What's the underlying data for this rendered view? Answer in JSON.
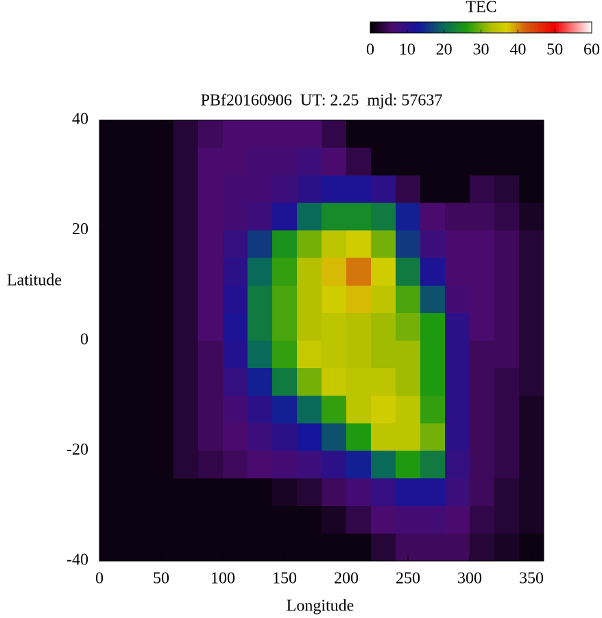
{
  "chart_data": {
    "type": "heatmap",
    "title": "PBf20160906  UT: 2.25  mjd: 57637",
    "xlabel": "Longitude",
    "ylabel": "Latitude",
    "colorbar_title": "TEC",
    "xlim": [
      0,
      360
    ],
    "ylim": [
      -40,
      40
    ],
    "xticks": [
      0,
      50,
      100,
      150,
      200,
      250,
      300,
      350
    ],
    "yticks": [
      -40,
      -20,
      0,
      20,
      40
    ],
    "colorbar_lim": [
      0,
      60
    ],
    "colorbar_ticks": [
      0,
      10,
      20,
      30,
      40,
      50,
      60
    ],
    "colormap": [
      {
        "value": 0,
        "color": "#000000"
      },
      {
        "value": 6,
        "color": "#4b0b6e"
      },
      {
        "value": 13,
        "color": "#14149c"
      },
      {
        "value": 20,
        "color": "#0a6a5a"
      },
      {
        "value": 26,
        "color": "#1e9a10"
      },
      {
        "value": 33,
        "color": "#b4c000"
      },
      {
        "value": 37,
        "color": "#d8d000"
      },
      {
        "value": 42,
        "color": "#d46010"
      },
      {
        "value": 50,
        "color": "#f00000"
      },
      {
        "value": 60,
        "color": "#ffffff"
      }
    ],
    "xbins": [
      0,
      20,
      40,
      60,
      80,
      100,
      120,
      140,
      160,
      180,
      200,
      220,
      240,
      260,
      280,
      300,
      320,
      340,
      360
    ],
    "ybins": [
      40,
      35,
      30,
      25,
      20,
      15,
      10,
      5,
      0,
      -5,
      -10,
      -15,
      -20,
      -25,
      -30,
      -35,
      -40
    ],
    "values": [
      [
        1,
        1,
        1,
        3,
        5,
        6,
        6,
        6,
        6,
        4,
        1,
        1,
        1,
        1,
        1,
        1,
        1,
        1
      ],
      [
        1,
        1,
        1,
        3,
        6,
        6,
        7,
        7,
        8,
        6,
        4,
        1,
        1,
        1,
        1,
        1,
        1,
        1
      ],
      [
        1,
        1,
        1,
        3,
        6,
        7,
        7,
        8,
        10,
        12,
        12,
        10,
        4,
        1,
        1,
        4,
        3,
        1
      ],
      [
        1,
        1,
        1,
        3,
        6,
        7,
        8,
        12,
        20,
        24,
        24,
        22,
        14,
        6,
        5,
        5,
        4,
        2
      ],
      [
        1,
        1,
        1,
        3,
        6,
        9,
        16,
        25,
        30,
        34,
        36,
        30,
        16,
        8,
        6,
        6,
        5,
        3
      ],
      [
        1,
        1,
        1,
        3,
        6,
        10,
        20,
        27,
        33,
        38,
        41,
        36,
        22,
        12,
        6,
        6,
        5,
        3
      ],
      [
        1,
        1,
        1,
        3,
        6,
        11,
        22,
        28,
        33,
        36,
        38,
        34,
        28,
        18,
        7,
        6,
        5,
        3
      ],
      [
        1,
        1,
        1,
        3,
        6,
        12,
        22,
        28,
        33,
        34,
        33,
        32,
        30,
        26,
        10,
        6,
        5,
        3
      ],
      [
        1,
        1,
        1,
        3,
        5,
        11,
        20,
        27,
        35,
        34,
        33,
        32,
        32,
        26,
        10,
        5,
        5,
        3
      ],
      [
        1,
        1,
        1,
        3,
        5,
        9,
        14,
        22,
        30,
        35,
        34,
        34,
        32,
        26,
        10,
        5,
        4,
        3
      ],
      [
        1,
        1,
        1,
        3,
        5,
        7,
        10,
        14,
        20,
        27,
        34,
        36,
        34,
        27,
        10,
        5,
        4,
        2
      ],
      [
        1,
        1,
        1,
        3,
        5,
        6,
        8,
        10,
        13,
        18,
        26,
        34,
        34,
        30,
        10,
        5,
        4,
        2
      ],
      [
        1,
        1,
        1,
        3,
        4,
        5,
        6,
        7,
        8,
        10,
        14,
        20,
        26,
        22,
        9,
        5,
        4,
        2
      ],
      [
        1,
        1,
        1,
        1,
        1,
        1,
        1,
        2,
        3,
        5,
        7,
        9,
        12,
        12,
        8,
        5,
        3,
        2
      ],
      [
        1,
        1,
        1,
        1,
        1,
        1,
        1,
        1,
        1,
        2,
        4,
        6,
        7,
        7,
        6,
        4,
        3,
        2
      ],
      [
        1,
        1,
        1,
        1,
        1,
        1,
        1,
        1,
        1,
        1,
        1,
        3,
        5,
        5,
        5,
        3,
        2,
        1
      ]
    ]
  }
}
